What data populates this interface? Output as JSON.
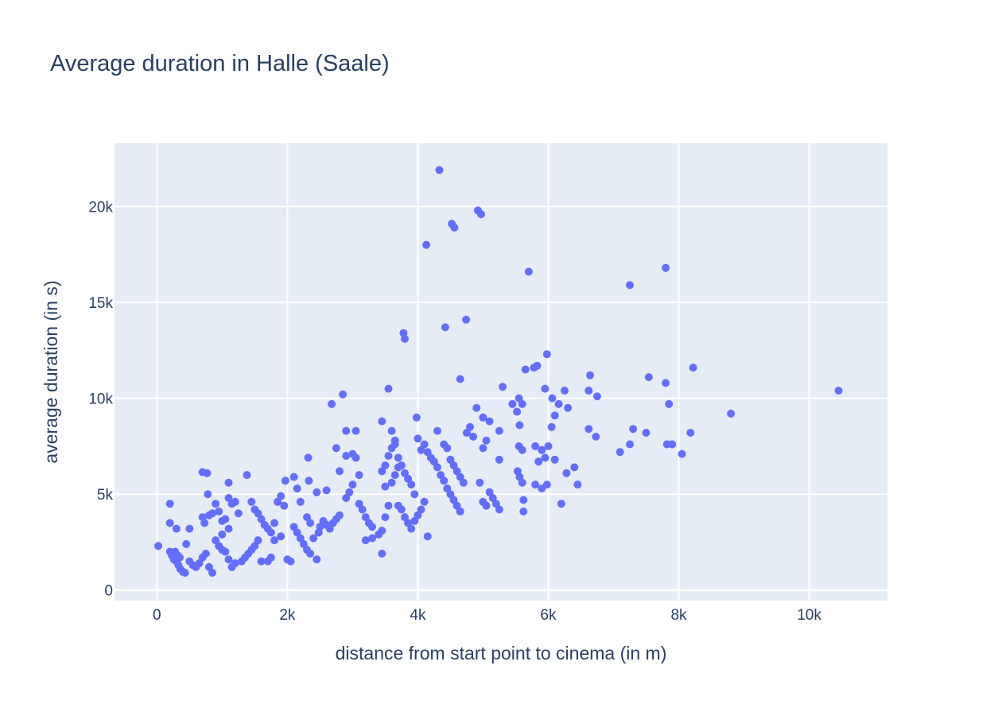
{
  "chart_data": {
    "type": "scatter",
    "title": "Average duration in Halle (Saale)",
    "xlabel": "distance from start point to cinema (in m)",
    "ylabel": "average duration (in s)",
    "xlim": [
      -650,
      11200
    ],
    "ylim": [
      -550,
      23300
    ],
    "xticks": [
      {
        "value": 0,
        "label": "0"
      },
      {
        "value": 2000,
        "label": "2k"
      },
      {
        "value": 4000,
        "label": "4k"
      },
      {
        "value": 6000,
        "label": "6k"
      },
      {
        "value": 8000,
        "label": "8k"
      },
      {
        "value": 10000,
        "label": "10k"
      }
    ],
    "yticks": [
      {
        "value": 0,
        "label": "0"
      },
      {
        "value": 5000,
        "label": "5k"
      },
      {
        "value": 10000,
        "label": "10k"
      },
      {
        "value": 15000,
        "label": "15k"
      },
      {
        "value": 20000,
        "label": "20k"
      }
    ],
    "grid": true,
    "legend": "none",
    "colors": {
      "marker": "#636efa",
      "plot_background": "#e5ecf6",
      "grid": "#ffffff",
      "text": "#2a3f5f"
    },
    "series": [
      {
        "points": [
          [
            20,
            2300
          ],
          [
            200,
            4500
          ],
          [
            200,
            3500
          ],
          [
            300,
            3200
          ],
          [
            500,
            3200
          ],
          [
            450,
            2400
          ],
          [
            200,
            2000
          ],
          [
            230,
            1800
          ],
          [
            260,
            1600
          ],
          [
            300,
            1500
          ],
          [
            330,
            1300
          ],
          [
            360,
            1100
          ],
          [
            400,
            950
          ],
          [
            430,
            900
          ],
          [
            240,
            1900
          ],
          [
            280,
            2000
          ],
          [
            320,
            1800
          ],
          [
            350,
            1700
          ],
          [
            500,
            1500
          ],
          [
            550,
            1300
          ],
          [
            600,
            1200
          ],
          [
            650,
            1400
          ],
          [
            700,
            1700
          ],
          [
            750,
            1900
          ],
          [
            800,
            1200
          ],
          [
            850,
            900
          ],
          [
            700,
            6150
          ],
          [
            770,
            6100
          ],
          [
            780,
            5000
          ],
          [
            700,
            3800
          ],
          [
            730,
            3500
          ],
          [
            800,
            3900
          ],
          [
            850,
            4000
          ],
          [
            900,
            4500
          ],
          [
            950,
            4100
          ],
          [
            1000,
            3600
          ],
          [
            1050,
            3700
          ],
          [
            1100,
            4800
          ],
          [
            1100,
            5600
          ],
          [
            1150,
            4500
          ],
          [
            1200,
            4600
          ],
          [
            1250,
            4000
          ],
          [
            1100,
            3200
          ],
          [
            1000,
            2900
          ],
          [
            900,
            2600
          ],
          [
            950,
            2300
          ],
          [
            1000,
            2100
          ],
          [
            1050,
            2000
          ],
          [
            1100,
            1600
          ],
          [
            1150,
            1200
          ],
          [
            1200,
            1400
          ],
          [
            1300,
            1500
          ],
          [
            1350,
            1700
          ],
          [
            1400,
            1900
          ],
          [
            1450,
            2100
          ],
          [
            1500,
            2300
          ],
          [
            1550,
            2600
          ],
          [
            1600,
            1500
          ],
          [
            1700,
            1500
          ],
          [
            1750,
            1700
          ],
          [
            1800,
            2600
          ],
          [
            1900,
            2800
          ],
          [
            2000,
            1600
          ],
          [
            2050,
            1500
          ],
          [
            1380,
            6000
          ],
          [
            1450,
            4600
          ],
          [
            1500,
            4200
          ],
          [
            1550,
            4000
          ],
          [
            1600,
            3700
          ],
          [
            1650,
            3400
          ],
          [
            1700,
            3200
          ],
          [
            1750,
            3000
          ],
          [
            1800,
            3500
          ],
          [
            1850,
            4600
          ],
          [
            1900,
            4900
          ],
          [
            1950,
            4400
          ],
          [
            1970,
            5700
          ],
          [
            2100,
            5900
          ],
          [
            2150,
            5300
          ],
          [
            2200,
            4600
          ],
          [
            2300,
            3800
          ],
          [
            2350,
            3500
          ],
          [
            2100,
            3300
          ],
          [
            2150,
            3000
          ],
          [
            2200,
            2700
          ],
          [
            2250,
            2400
          ],
          [
            2300,
            2100
          ],
          [
            2350,
            1900
          ],
          [
            2450,
            1600
          ],
          [
            2400,
            2700
          ],
          [
            2480,
            3000
          ],
          [
            2500,
            3300
          ],
          [
            2550,
            3600
          ],
          [
            2600,
            3400
          ],
          [
            2650,
            3200
          ],
          [
            2700,
            3500
          ],
          [
            2750,
            3700
          ],
          [
            2800,
            3900
          ],
          [
            2330,
            5700
          ],
          [
            2320,
            6900
          ],
          [
            2450,
            5100
          ],
          [
            2600,
            5200
          ],
          [
            2680,
            9700
          ],
          [
            2850,
            10200
          ],
          [
            2750,
            7400
          ],
          [
            2800,
            6200
          ],
          [
            2900,
            8300
          ],
          [
            3050,
            8300
          ],
          [
            2900,
            7000
          ],
          [
            3000,
            7100
          ],
          [
            3050,
            6900
          ],
          [
            3100,
            6000
          ],
          [
            3000,
            5500
          ],
          [
            2950,
            5100
          ],
          [
            2900,
            4800
          ],
          [
            3100,
            4500
          ],
          [
            3150,
            4200
          ],
          [
            3200,
            3800
          ],
          [
            3250,
            3500
          ],
          [
            3300,
            3300
          ],
          [
            3200,
            2600
          ],
          [
            3300,
            2700
          ],
          [
            3450,
            1900
          ],
          [
            3400,
            2900
          ],
          [
            3450,
            3100
          ],
          [
            3500,
            3800
          ],
          [
            3550,
            4400
          ],
          [
            3500,
            5400
          ],
          [
            3600,
            5600
          ],
          [
            3650,
            6000
          ],
          [
            3700,
            6400
          ],
          [
            3450,
            6200
          ],
          [
            3500,
            6500
          ],
          [
            3550,
            7000
          ],
          [
            3600,
            7400
          ],
          [
            3650,
            7600
          ],
          [
            3700,
            6900
          ],
          [
            3750,
            6500
          ],
          [
            3800,
            6100
          ],
          [
            3850,
            5800
          ],
          [
            3900,
            5500
          ],
          [
            3950,
            5000
          ],
          [
            3600,
            8300
          ],
          [
            3650,
            7800
          ],
          [
            3450,
            8800
          ],
          [
            3550,
            10500
          ],
          [
            3780,
            13400
          ],
          [
            3800,
            13100
          ],
          [
            3700,
            4400
          ],
          [
            3750,
            4200
          ],
          [
            3800,
            3800
          ],
          [
            3850,
            3500
          ],
          [
            3900,
            3200
          ],
          [
            3950,
            3600
          ],
          [
            4000,
            3900
          ],
          [
            4050,
            4200
          ],
          [
            4100,
            4600
          ],
          [
            4150,
            2800
          ],
          [
            4000,
            7900
          ],
          [
            3980,
            9000
          ],
          [
            4050,
            7300
          ],
          [
            4100,
            7600
          ],
          [
            4150,
            7200
          ],
          [
            4200,
            6900
          ],
          [
            4250,
            6700
          ],
          [
            4300,
            6400
          ],
          [
            4350,
            6000
          ],
          [
            4400,
            5700
          ],
          [
            4450,
            5300
          ],
          [
            4500,
            5000
          ],
          [
            4550,
            4700
          ],
          [
            4600,
            4400
          ],
          [
            4650,
            4100
          ],
          [
            4130,
            18000
          ],
          [
            4330,
            21900
          ],
          [
            4520,
            19100
          ],
          [
            4560,
            18900
          ],
          [
            4920,
            19800
          ],
          [
            4970,
            19600
          ],
          [
            4420,
            13700
          ],
          [
            4740,
            14100
          ],
          [
            4650,
            11000
          ],
          [
            4300,
            8300
          ],
          [
            4400,
            7600
          ],
          [
            4450,
            7400
          ],
          [
            4500,
            6800
          ],
          [
            4550,
            6500
          ],
          [
            4600,
            6200
          ],
          [
            4650,
            5900
          ],
          [
            4700,
            5600
          ],
          [
            4750,
            8200
          ],
          [
            4800,
            8500
          ],
          [
            4850,
            8000
          ],
          [
            4900,
            9500
          ],
          [
            5000,
            9000
          ],
          [
            5100,
            8800
          ],
          [
            5050,
            7800
          ],
          [
            5000,
            7400
          ],
          [
            5250,
            8300
          ],
          [
            5250,
            6800
          ],
          [
            5100,
            5100
          ],
          [
            5150,
            4800
          ],
          [
            5200,
            4500
          ],
          [
            5250,
            4200
          ],
          [
            5000,
            4600
          ],
          [
            5050,
            4400
          ],
          [
            4950,
            5600
          ],
          [
            5300,
            10600
          ],
          [
            5450,
            9700
          ],
          [
            5550,
            10000
          ],
          [
            5520,
            9300
          ],
          [
            5600,
            9700
          ],
          [
            5560,
            8600
          ],
          [
            5550,
            7500
          ],
          [
            5600,
            7300
          ],
          [
            5620,
            4700
          ],
          [
            5620,
            4100
          ],
          [
            5530,
            6200
          ],
          [
            5560,
            5900
          ],
          [
            5600,
            5600
          ],
          [
            5700,
            16600
          ],
          [
            5650,
            11500
          ],
          [
            5780,
            11600
          ],
          [
            5830,
            11700
          ],
          [
            5980,
            12300
          ],
          [
            5950,
            10500
          ],
          [
            6060,
            10000
          ],
          [
            6160,
            9700
          ],
          [
            6300,
            9500
          ],
          [
            6250,
            10400
          ],
          [
            6100,
            9100
          ],
          [
            6050,
            8500
          ],
          [
            6000,
            7500
          ],
          [
            5900,
            7300
          ],
          [
            5800,
            7500
          ],
          [
            5850,
            6700
          ],
          [
            5950,
            6900
          ],
          [
            6100,
            6800
          ],
          [
            6280,
            6100
          ],
          [
            6400,
            6400
          ],
          [
            6450,
            5500
          ],
          [
            5900,
            5300
          ],
          [
            5800,
            5500
          ],
          [
            5980,
            5500
          ],
          [
            6200,
            4500
          ],
          [
            6640,
            11200
          ],
          [
            6620,
            10400
          ],
          [
            6750,
            10100
          ],
          [
            6620,
            8400
          ],
          [
            6730,
            8000
          ],
          [
            7250,
            15900
          ],
          [
            7800,
            16800
          ],
          [
            7100,
            7200
          ],
          [
            7250,
            7600
          ],
          [
            7300,
            8400
          ],
          [
            7500,
            8200
          ],
          [
            7540,
            11100
          ],
          [
            7800,
            10800
          ],
          [
            7850,
            9700
          ],
          [
            7820,
            7600
          ],
          [
            7900,
            7600
          ],
          [
            8050,
            7100
          ],
          [
            8180,
            8200
          ],
          [
            8220,
            11600
          ],
          [
            8800,
            9200
          ],
          [
            10450,
            10400
          ]
        ]
      }
    ]
  }
}
